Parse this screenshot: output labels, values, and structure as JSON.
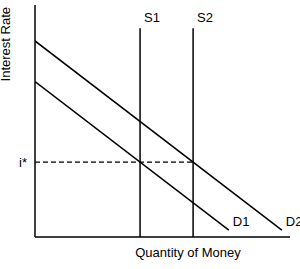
{
  "chart_data": {
    "type": "line",
    "x_label": "Quantity of Money",
    "y_label": "Interest Rate",
    "xlim": [
      0,
      10
    ],
    "ylim": [
      0,
      10
    ],
    "yticks": [
      {
        "value": 3.23,
        "label": "i*"
      }
    ],
    "tick_labels": "y",
    "grid": false,
    "color": "#000000",
    "series": [
      {
        "name": "D1",
        "x": [
          0,
          7.6
        ],
        "values": [
          6.7,
          0.3
        ]
      },
      {
        "name": "D2",
        "x": [
          0,
          9.68
        ],
        "values": [
          8.45,
          0.3
        ]
      },
      {
        "name": "S1",
        "x": [
          4.12,
          4.12
        ],
        "values": [
          0,
          9
        ]
      },
      {
        "name": "S2",
        "x": [
          6.2,
          6.2
        ],
        "values": [
          0,
          9
        ]
      },
      {
        "x": [
          0,
          6.2
        ],
        "values": [
          3.23,
          3.23
        ],
        "line_style": "dashed"
      }
    ]
  }
}
